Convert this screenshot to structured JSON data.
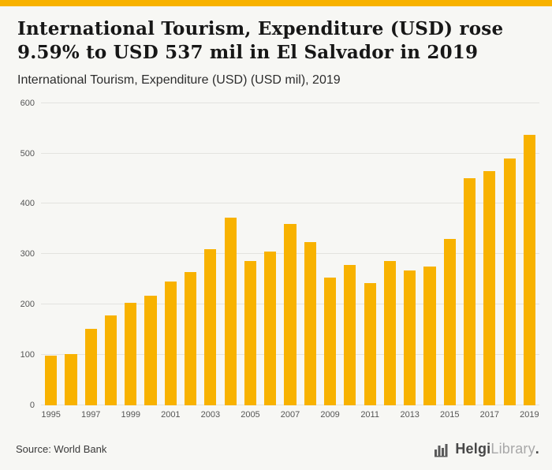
{
  "page": {
    "title": "International Tourism, Expenditure (USD) rose 9.59% to USD 537 mil in El Salvador in 2019",
    "subtitle": "International Tourism, Expenditure (USD) (USD mil), 2019"
  },
  "footer": {
    "source": "Source: World Bank",
    "brand_bold": "Helgi",
    "brand_light": "Library",
    "brand_dot": "."
  },
  "colors": {
    "accent": "#F8B200",
    "bar": "#F8B200",
    "background": "#f7f7f4",
    "gridline": "#e3e3df"
  },
  "chart_data": {
    "type": "bar",
    "title": "International Tourism, Expenditure (USD) (USD mil), 2019",
    "xlabel": "",
    "ylabel": "",
    "ylim": [
      0,
      600
    ],
    "yticks": [
      0,
      100,
      200,
      300,
      400,
      500,
      600
    ],
    "grid": true,
    "legend": false,
    "bar_color": "#F8B200",
    "categories": [
      1995,
      1996,
      1997,
      1998,
      1999,
      2000,
      2001,
      2002,
      2003,
      2004,
      2005,
      2006,
      2007,
      2008,
      2009,
      2010,
      2011,
      2012,
      2013,
      2014,
      2015,
      2016,
      2017,
      2018,
      2019
    ],
    "values": [
      98,
      101,
      152,
      178,
      204,
      218,
      246,
      265,
      310,
      372,
      287,
      305,
      360,
      324,
      253,
      278,
      242,
      287,
      268,
      276,
      330,
      451,
      465,
      490,
      537
    ],
    "xtick_labels": [
      1995,
      1997,
      1999,
      2001,
      2003,
      2005,
      2007,
      2009,
      2011,
      2013,
      2015,
      2017,
      2019
    ]
  }
}
